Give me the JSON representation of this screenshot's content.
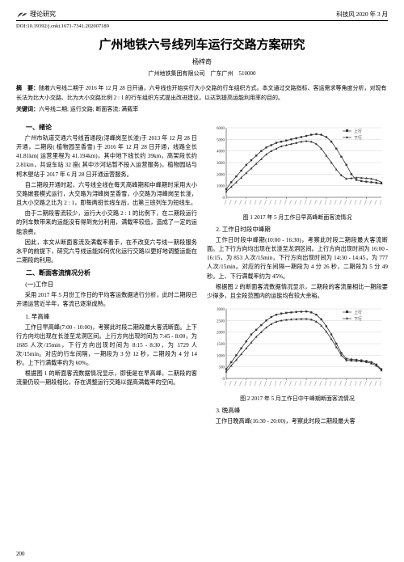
{
  "header": {
    "section_label": "理论研究",
    "issue": "科技风 2020 年 3 月"
  },
  "doi": "DOI:10.19392/j.cnki.1671-7341.202007189",
  "title": "广州地铁六号线列车运行交路方案研究",
  "author": "杨梓奇",
  "affiliation": "广州地铁集团有限公司　广东广州　510000",
  "abstract": {
    "label": "摘　要：",
    "text": "随着六号线二期于 2016 年 12 月 28 日开通，六号线也开始实行大小交路的行车组织方式。本文通过交路指标、客运需求等角度分析，对现有长法为比大小交路、比为大小交路比例 2 : 1 的行车组织方式提出改进建议，以达到提高运能利用率的目的。"
  },
  "keywords": {
    "label": "关键词：",
    "text": "六号线二期; 运行交路; 断面客流; 满载率"
  },
  "sec1_title": "一、绪论",
  "left_paras": [
    "广州市轨道交通六号线首通段(浔峰岗至长湴)于 2013 年 12 月 28 日开通，二期段( 植物园至香雪) 于 2016 年 12 月 28 日开通，线路全长 41.81km( 运营里程为 41.194km)，其中地下线长约 39km，高架段长约 2.81km，共设车站 32 座( 其中沙河站暂不投入运营服务)，植物园站与柯木塱站于 2017 年 6 月 28 日开通运营服务。",
    "自二期段开通时起，六号线全线在每天高峰期和中峰期时采用大小交路嵌套模式运行，大交路为浔峰岗至香雪，小交路为浔峰岗至长湴，且大小交路之比为 2 : 1，即每两班长线车后，出第三班列车为短线车。",
    "由于二期段客流较少，运行大小交路 2 : 1 的比例下，在二期段运行的列车数带来的运能没有得到充分利用，满载率较低，造成了一定的运能浪费。",
    "因此，本文从断面客流及满载率着手，在不改变六号线一期段服务水平的前提下，研究六号线运能如何优化运行交路以更好地调整运能在二期段的利用。"
  ],
  "sec2_title": "二、断面客流情况分析",
  "sub_workday": "(一)工作日",
  "workday_intro": "采用 2017 年 5 月份工作日的平均客运数据进行分析，此时二期段已开通运营近半年，客流已逐渐成熟。",
  "sub_morning": "1. 早高峰",
  "morning_paras": [
    "工作日早高峰(7:00 - 10:00)，考察此时段二期段最大客流断面。上下行方向均出现在长湴至龙洞区间。上行方向出现时间为 7:45 - 8:00，为 1685 人次/15min，下行方向出现时间为 8:15 - 8:30，为 1729 人次/15min。对应的行车间隔，一期段为 3 分 12 秒，二期段为 4 分 14 秒。上下行满载率约为 60%。",
    "根据图 1 的断面客流数据情况显示，即使是在早高峰，二期段的客流量仍较一期段相比，存在调整运行交路以提高满载率的空间。"
  ],
  "chart1": {
    "caption": "图 1 2017 年 5 月工作日早高峰断面客流情况",
    "type": "line",
    "background": "#ffffff",
    "grid_color": "#cccccc",
    "axis_color": "#333333",
    "series": [
      {
        "name": "上行",
        "color": "#333333",
        "marker": "square",
        "values": [
          700,
          1300,
          1800,
          2300,
          2800,
          3200,
          3600,
          4000,
          4300,
          4500,
          4700,
          4800,
          4900,
          5000,
          5100,
          5200,
          5300,
          5400,
          5450,
          5400,
          5200,
          4800,
          4200,
          3500,
          2800,
          2000,
          1500,
          1400,
          1350,
          1300,
          1250,
          1200
        ]
      },
      {
        "name": "下行",
        "color": "#333333",
        "marker": "triangle",
        "values": [
          500,
          900,
          1300,
          1700,
          2100,
          2500,
          2900,
          3300,
          3700,
          4000,
          4200,
          4400,
          4500,
          4600,
          4700,
          4800,
          4850,
          4800,
          4600,
          4200,
          3600,
          3000,
          2400,
          1900,
          1600,
          1650,
          1700,
          1680,
          1650,
          1600,
          1500,
          1300
        ]
      }
    ],
    "ylim": [
      0,
      6000
    ],
    "ytick_step": 1000,
    "n_points": 32
  },
  "sub_midday": "2. 工作日时段中峰期",
  "midday_paras": [
    "工作日时段中峰期(10:00 - 16:30)，考察此时段二期段最大客流断面。上下行方向均出现在长湴至龙洞区间。上行方向出现时间为 16:00 - 16:15，为 853 人次/15min，下行方向出现时间为 14:30 - 14:45，为 777 人次/15min。对应的行车间隔一期段为 4 分 26 秒，二期段为 5 分 49 秒。上、下行满载率约为 45%。",
    "根据图 2 的断面客流数据情况显示，二期段的客流量相比一期段要少得多，且全段范围内的运能均有较大余裕。"
  ],
  "chart2": {
    "caption": "图 2 2017 年 5 月工作日中午峰期断面客流情况",
    "type": "line",
    "background": "#ffffff",
    "grid_color": "#cccccc",
    "axis_color": "#333333",
    "series": [
      {
        "name": "上行",
        "color": "#333333",
        "marker": "square",
        "values": [
          400,
          700,
          1000,
          1300,
          1600,
          1900,
          2100,
          2300,
          2500,
          2650,
          2750,
          2800,
          2830,
          2850,
          2870,
          2880,
          2890,
          2850,
          2750,
          2550,
          2250,
          1900,
          1500,
          1100,
          850,
          820,
          800,
          780,
          750,
          700,
          600,
          400
        ]
      },
      {
        "name": "下行",
        "color": "#333333",
        "marker": "triangle",
        "values": [
          300,
          550,
          800,
          1050,
          1300,
          1550,
          1800,
          2000,
          2200,
          2350,
          2450,
          2500,
          2530,
          2550,
          2560,
          2570,
          2570,
          2540,
          2450,
          2280,
          2020,
          1700,
          1350,
          1000,
          780,
          770,
          760,
          740,
          710,
          650,
          550,
          350
        ]
      }
    ],
    "ylim": [
      0,
      3000
    ],
    "ytick_step": 500,
    "n_points": 32
  },
  "sub_evening": "3. 晚高峰",
  "evening_para": "工作日晚高峰(16:30 - 20:00)，考察此时段二期段最大客",
  "page_number": "200"
}
